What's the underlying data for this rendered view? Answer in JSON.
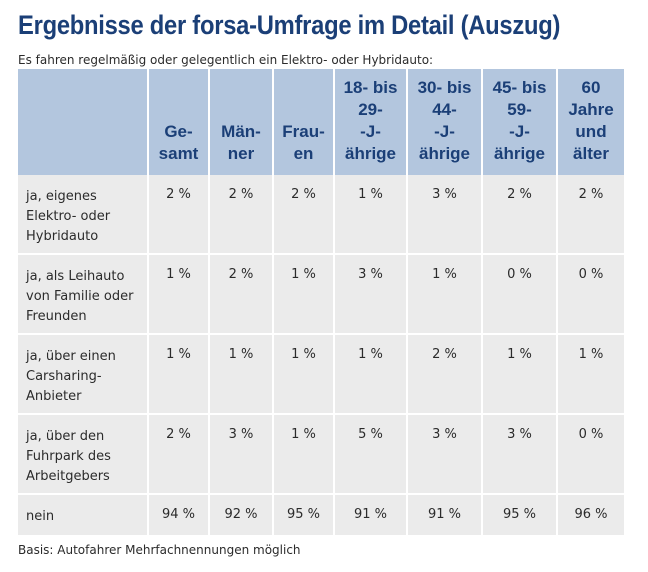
{
  "title": "Ergebnisse der forsa-Umfrage im Detail (Auszug)",
  "subtitle": "Es fahren regelmäßig oder gelegentlich ein Elektro- oder Hybridauto:",
  "footer": "Basis: Autofahrer Mehrfachnennungen möglich",
  "colors": {
    "header_bg": "#b3c6de",
    "header_text": "#1b3f77",
    "cell_bg": "#ebebeb"
  },
  "chart_data": {
    "type": "table",
    "title": "Ergebnisse der forsa-Umfrage im Detail (Auszug)",
    "columns": [
      {
        "lines": [
          "Ge-",
          "samt"
        ]
      },
      {
        "lines": [
          "Män-",
          "ner"
        ]
      },
      {
        "lines": [
          "Frau-",
          "en"
        ]
      },
      {
        "lines": [
          "18- bis",
          "29-",
          "-J-",
          "ährige"
        ]
      },
      {
        "lines": [
          "30- bis",
          "44-",
          "-J-",
          "ährige"
        ]
      },
      {
        "lines": [
          "45- bis",
          "59-",
          "-J-",
          "ährige"
        ]
      },
      {
        "lines": [
          "60",
          "Jahre",
          "und",
          "älter"
        ]
      }
    ],
    "rows": [
      {
        "label": [
          "ja, eigenes",
          "Elektro- oder",
          "Hybridauto"
        ],
        "values": [
          "2 %",
          "2 %",
          "2 %",
          "1 %",
          "3 %",
          "2 %",
          "2 %"
        ]
      },
      {
        "label": [
          "ja, als Leihauto",
          "von Familie oder",
          "Freunden"
        ],
        "values": [
          "1 %",
          "2 %",
          "1 %",
          "3 %",
          "1 %",
          "0 %",
          "0 %"
        ]
      },
      {
        "label": [
          "ja, über einen",
          "Carsharing-",
          "Anbieter"
        ],
        "values": [
          "1 %",
          "1 %",
          "1 %",
          "1 %",
          "2 %",
          "1 %",
          "1 %"
        ]
      },
      {
        "label": [
          "ja, über den",
          "Fuhrpark des",
          "Arbeitgebers"
        ],
        "values": [
          "2 %",
          "3 %",
          "1 %",
          "5 %",
          "3 %",
          "3 %",
          "0 %"
        ]
      },
      {
        "label": [
          "nein"
        ],
        "values": [
          "94 %",
          "92 %",
          "95 %",
          "91 %",
          "91 %",
          "95 %",
          "96 %"
        ]
      }
    ]
  }
}
